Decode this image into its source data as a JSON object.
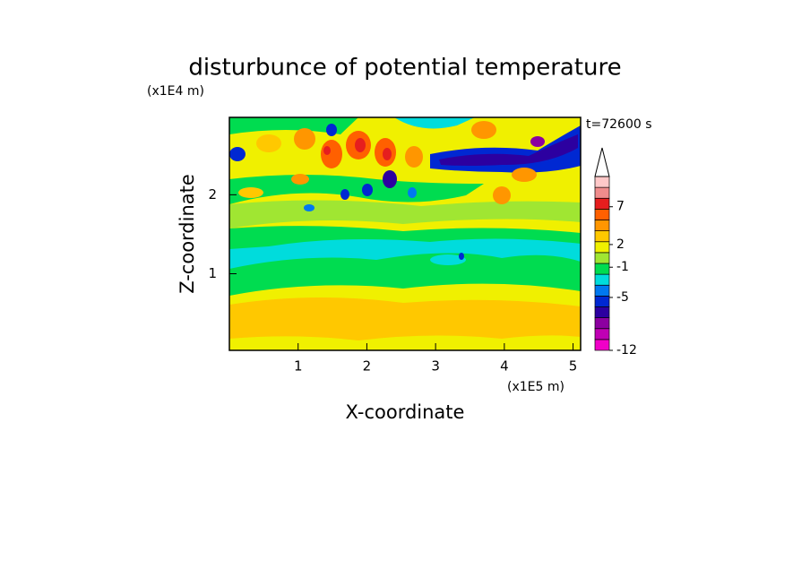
{
  "chart_data": {
    "type": "contour",
    "title": "disturbunce of potential temperature",
    "y_unit": "(x1E4 m)",
    "x_unit": "(x1E5 m)",
    "time_label": "t=72600 s",
    "xlabel": "X-coordinate",
    "ylabel": "Z-coordinate",
    "xlim": [
      0,
      5.11
    ],
    "xticks": [
      1,
      2,
      3,
      4,
      5
    ],
    "ylim": [
      0.03,
      2.98
    ],
    "yticks": [
      1,
      2
    ],
    "colorbar_range": [
      -12,
      11
    ],
    "colorbar_ticks": [
      -12,
      -5,
      -1,
      2,
      7
    ],
    "colorbar_colors": [
      "#f000c8",
      "#c000b4",
      "#8c00a0",
      "#2c00a0",
      "#0028d2",
      "#0078f0",
      "#00dcdc",
      "#00dc50",
      "#a0e632",
      "#f0f000",
      "#ffc800",
      "#ff9600",
      "#ff6000",
      "#e61e1e",
      "#f08c8c",
      "#ffc8c8"
    ]
  }
}
